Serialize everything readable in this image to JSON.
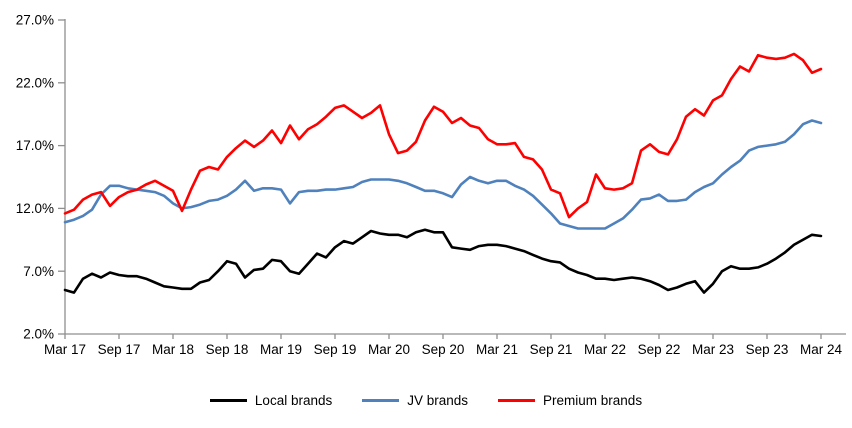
{
  "chart_data": {
    "type": "line",
    "title": "",
    "grid": "off",
    "legend_position": "bottom",
    "axis_color": "#8F8F8F",
    "label_color": "#000000",
    "x_axis": {
      "unit": "month",
      "points_per_tick": 6,
      "tick_labels": [
        "Mar 17",
        "Sep 17",
        "Mar 18",
        "Sep 18",
        "Mar 19",
        "Sep 19",
        "Mar 20",
        "Sep 20",
        "Mar 21",
        "Sep 21",
        "Mar 22",
        "Sep 22",
        "Mar 23",
        "Sep 23",
        "Mar 24"
      ]
    },
    "y_axis": {
      "unit": "percent",
      "ylim": [
        2,
        27
      ],
      "tick_values": [
        27,
        22,
        17,
        12,
        7,
        2
      ],
      "tick_labels": [
        "27.0%",
        "22.0%",
        "17.0%",
        "12.0%",
        "7.0%",
        "2.0%"
      ]
    },
    "series": [
      {
        "name": "Local brands",
        "color": "#000000",
        "values": [
          5.5,
          5.3,
          6.4,
          6.8,
          6.5,
          6.9,
          6.7,
          6.6,
          6.6,
          6.4,
          6.1,
          5.8,
          5.7,
          5.6,
          5.6,
          6.1,
          6.3,
          7.0,
          7.8,
          7.6,
          6.5,
          7.1,
          7.2,
          7.9,
          7.8,
          7.0,
          6.8,
          7.6,
          8.4,
          8.1,
          8.9,
          9.4,
          9.2,
          9.7,
          10.2,
          10.0,
          9.9,
          9.9,
          9.7,
          10.1,
          10.3,
          10.1,
          10.1,
          8.9,
          8.8,
          8.7,
          9.0,
          9.1,
          9.1,
          9.0,
          8.8,
          8.6,
          8.3,
          8.0,
          7.8,
          7.7,
          7.2,
          6.9,
          6.7,
          6.4,
          6.4,
          6.3,
          6.4,
          6.5,
          6.4,
          6.2,
          5.9,
          5.5,
          5.7,
          6.0,
          6.2,
          5.3,
          6.0,
          7.0,
          7.4,
          7.2,
          7.2,
          7.3,
          7.6,
          8.0,
          8.5,
          9.1,
          9.5,
          9.9,
          9.8
        ]
      },
      {
        "name": "JV brands",
        "color": "#4F81BD",
        "values": [
          10.9,
          11.1,
          11.4,
          11.9,
          13.1,
          13.8,
          13.8,
          13.6,
          13.5,
          13.4,
          13.3,
          13.0,
          12.4,
          12.0,
          12.1,
          12.3,
          12.6,
          12.7,
          13.0,
          13.5,
          14.2,
          13.4,
          13.6,
          13.6,
          13.5,
          12.4,
          13.3,
          13.4,
          13.4,
          13.5,
          13.5,
          13.6,
          13.7,
          14.1,
          14.3,
          14.3,
          14.3,
          14.2,
          14.0,
          13.7,
          13.4,
          13.4,
          13.2,
          12.9,
          13.9,
          14.5,
          14.2,
          14.0,
          14.2,
          14.2,
          13.8,
          13.5,
          13.0,
          12.3,
          11.6,
          10.8,
          10.6,
          10.4,
          10.4,
          10.4,
          10.4,
          10.8,
          11.2,
          11.9,
          12.7,
          12.8,
          13.1,
          12.6,
          12.6,
          12.7,
          13.3,
          13.7,
          14.0,
          14.7,
          15.3,
          15.8,
          16.6,
          16.9,
          17.0,
          17.1,
          17.3,
          17.9,
          18.7,
          19.0,
          18.8
        ]
      },
      {
        "name": "Premium brands",
        "color": "#FF0000",
        "values": [
          11.6,
          11.9,
          12.7,
          13.1,
          13.3,
          12.2,
          12.9,
          13.3,
          13.5,
          13.9,
          14.2,
          13.8,
          13.4,
          11.8,
          13.5,
          15.0,
          15.3,
          15.1,
          16.1,
          16.8,
          17.4,
          16.9,
          17.4,
          18.2,
          17.2,
          18.6,
          17.5,
          18.3,
          18.7,
          19.3,
          20.0,
          20.2,
          19.7,
          19.2,
          19.6,
          20.2,
          17.9,
          16.4,
          16.6,
          17.3,
          19.0,
          20.1,
          19.7,
          18.8,
          19.2,
          18.6,
          18.4,
          17.5,
          17.1,
          17.1,
          17.2,
          16.1,
          15.9,
          15.1,
          13.5,
          13.2,
          11.3,
          12.0,
          12.5,
          14.7,
          13.6,
          13.5,
          13.6,
          14.0,
          16.6,
          17.1,
          16.5,
          16.3,
          17.5,
          19.3,
          19.9,
          19.4,
          20.6,
          21.0,
          22.3,
          23.3,
          22.9,
          24.2,
          24.0,
          23.9,
          24.0,
          24.3,
          23.8,
          22.8,
          23.1
        ]
      }
    ]
  }
}
